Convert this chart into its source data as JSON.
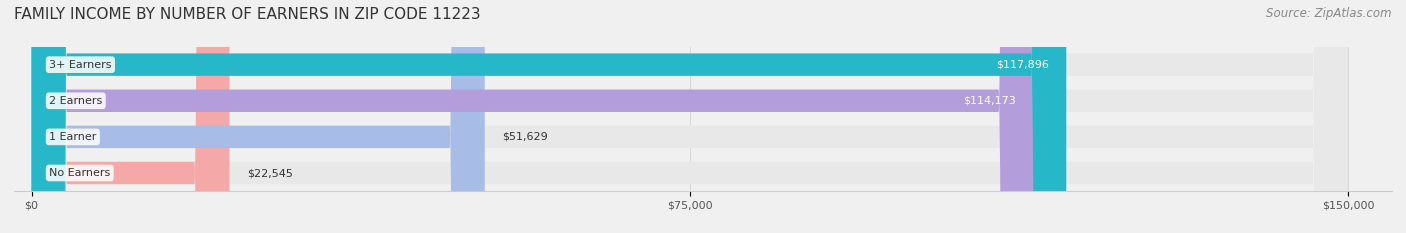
{
  "title": "FAMILY INCOME BY NUMBER OF EARNERS IN ZIP CODE 11223",
  "source": "Source: ZipAtlas.com",
  "categories": [
    "No Earners",
    "1 Earner",
    "2 Earners",
    "3+ Earners"
  ],
  "values": [
    22545,
    51629,
    114173,
    117896
  ],
  "bar_colors": [
    "#f4a8a8",
    "#a8bce8",
    "#b39ddb",
    "#26b8c8"
  ],
  "label_colors": [
    "#555555",
    "#555555",
    "#ffffff",
    "#ffffff"
  ],
  "xmax": 150000,
  "xticks": [
    0,
    75000,
    150000
  ],
  "xtick_labels": [
    "$0",
    "$75,000",
    "$150,000"
  ],
  "value_labels": [
    "$22,545",
    "$51,629",
    "$114,173",
    "$117,896"
  ],
  "bg_color": "#f0f0f0",
  "bar_bg_color": "#e8e8e8",
  "title_fontsize": 11,
  "source_fontsize": 8.5,
  "label_fontsize": 8,
  "value_fontsize": 8
}
